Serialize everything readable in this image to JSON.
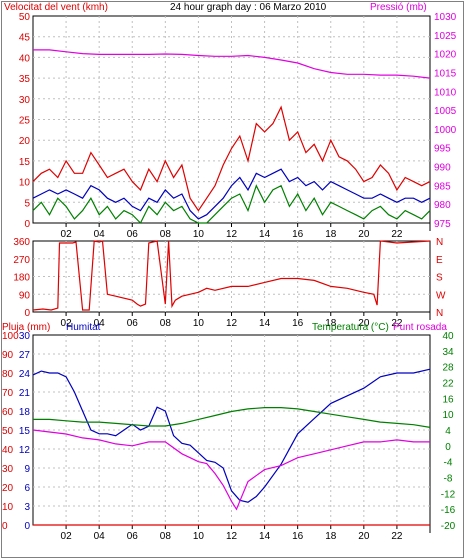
{
  "header": {
    "left_title": "Velocitat del vent (kmh)",
    "center_title": "24 hour graph day : 06 Marzo 2010",
    "right_title": "Pressió (mb)"
  },
  "colors": {
    "red": "#e00000",
    "blue": "#0000c0",
    "green": "#008000",
    "magenta": "#e000e0",
    "grid": "#c0c0c0",
    "frame": "#000000"
  },
  "chart_data": [
    {
      "id": "wind_pressure",
      "type": "line",
      "title": "24 hour graph day : 06 Marzo 2010",
      "x_ticks": [
        "02",
        "04",
        "06",
        "08",
        "10",
        "12",
        "14",
        "16",
        "18",
        "20",
        "22"
      ],
      "left_axis": {
        "label": "Velocitat del vent (kmh)",
        "ticks": [
          0,
          5,
          10,
          15,
          20,
          25,
          30,
          35,
          40,
          45,
          50
        ],
        "ylim": [
          0,
          50
        ]
      },
      "right_axis": {
        "label": "Pressió (mb)",
        "ticks": [
          975,
          980,
          985,
          990,
          995,
          1000,
          1005,
          1010,
          1015,
          1020,
          1025,
          1030
        ],
        "ylim": [
          975,
          1030
        ]
      },
      "series": [
        {
          "axis": "right",
          "color": "#e000e0",
          "x": [
            0,
            1,
            2,
            3,
            4,
            5,
            6,
            7,
            8,
            9,
            10,
            11,
            12,
            13,
            14,
            15,
            16,
            17,
            18,
            19,
            20,
            21,
            22,
            23,
            24
          ],
          "values": [
            1021,
            1021,
            1020.5,
            1020,
            1019.8,
            1019.8,
            1019.8,
            1019.8,
            1019.9,
            1019.8,
            1019.5,
            1019.3,
            1019.3,
            1019.5,
            1019,
            1018.3,
            1017.5,
            1016,
            1015,
            1014.5,
            1014.5,
            1014.3,
            1014.3,
            1014,
            1013.5
          ]
        },
        {
          "axis": "left",
          "color": "#e00000",
          "x": [
            0,
            0.5,
            1,
            1.5,
            2,
            2.5,
            3,
            3.5,
            4,
            4.5,
            5,
            5.5,
            6,
            6.5,
            7,
            7.5,
            8,
            8.5,
            9,
            9.5,
            10,
            10.5,
            11,
            11.5,
            12,
            12.5,
            13,
            13.5,
            14,
            14.5,
            15,
            15.5,
            16,
            16.5,
            17,
            17.5,
            18,
            18.5,
            19,
            19.5,
            20,
            20.5,
            21,
            21.5,
            22,
            22.5,
            23,
            23.5,
            24
          ],
          "values": [
            10,
            12,
            13,
            11,
            15,
            12,
            12,
            17,
            14,
            11,
            12,
            13,
            10,
            8,
            13,
            10,
            15,
            11,
            14,
            6,
            3,
            6,
            9,
            14,
            18,
            21,
            15,
            24,
            22,
            24,
            28,
            20,
            22,
            17,
            19,
            15,
            20,
            16,
            15,
            13,
            10,
            11,
            14,
            12,
            8,
            11,
            10,
            9,
            10
          ]
        },
        {
          "axis": "left",
          "color": "#0000c0",
          "x": [
            0,
            0.5,
            1,
            1.5,
            2,
            2.5,
            3,
            3.5,
            4,
            4.5,
            5,
            5.5,
            6,
            6.5,
            7,
            7.5,
            8,
            8.5,
            9,
            9.5,
            10,
            10.5,
            11,
            11.5,
            12,
            12.5,
            13,
            13.5,
            14,
            14.5,
            15,
            15.5,
            16,
            16.5,
            17,
            17.5,
            18,
            18.5,
            19,
            19.5,
            20,
            20.5,
            21,
            21.5,
            22,
            22.5,
            23,
            23.5,
            24
          ],
          "values": [
            6,
            7,
            8,
            7,
            8,
            7,
            6,
            9,
            8,
            6,
            5,
            6,
            4,
            3,
            6,
            5,
            8,
            6,
            7,
            3,
            1,
            2,
            4,
            6,
            9,
            11,
            8,
            12,
            11,
            12,
            13,
            10,
            11,
            9,
            10,
            8,
            10,
            9,
            8,
            7,
            6,
            6,
            7,
            6,
            5,
            6,
            6,
            5,
            6
          ]
        },
        {
          "axis": "left",
          "color": "#008000",
          "x": [
            0,
            0.5,
            1,
            1.5,
            2,
            2.5,
            3,
            3.5,
            4,
            4.5,
            5,
            5.5,
            6,
            6.5,
            7,
            7.5,
            8,
            8.5,
            9,
            9.5,
            10,
            10.5,
            11,
            11.5,
            12,
            12.5,
            13,
            13.5,
            14,
            14.5,
            15,
            15.5,
            16,
            16.5,
            17,
            17.5,
            18,
            18.5,
            19,
            19.5,
            20,
            20.5,
            21,
            21.5,
            22,
            22.5,
            23,
            23.5,
            24
          ],
          "values": [
            3,
            5,
            2,
            6,
            4,
            1,
            3,
            6,
            2,
            4,
            1,
            3,
            2,
            0,
            4,
            2,
            5,
            3,
            4,
            1,
            0,
            0,
            2,
            4,
            6,
            7,
            3,
            9,
            5,
            8,
            9,
            4,
            7,
            3,
            6,
            2,
            5,
            4,
            3,
            2,
            1,
            3,
            4,
            2,
            1,
            3,
            2,
            1,
            3
          ]
        }
      ]
    },
    {
      "id": "wind_direction",
      "type": "line",
      "left_axis": {
        "ticks": [
          0,
          90,
          180,
          270,
          360
        ],
        "ylim": [
          0,
          360
        ]
      },
      "right_axis": {
        "ticks": [
          "N",
          "W",
          "S",
          "E",
          "N"
        ]
      },
      "series": [
        {
          "color": "#e00000",
          "x": [
            0,
            0.6,
            1.1,
            1.5,
            1.6,
            2,
            2.4,
            2.6,
            3,
            3.4,
            3.7,
            4,
            4.2,
            4.5,
            5,
            6,
            6.3,
            6.5,
            6.8,
            7,
            7.5,
            8,
            8.2,
            8.4,
            8.6,
            8.8,
            9,
            10,
            10.5,
            11,
            12,
            13,
            14,
            15,
            16,
            17,
            18,
            19,
            20,
            20.6,
            20.8,
            21,
            22,
            23,
            24
          ],
          "values": [
            10,
            15,
            10,
            20,
            350,
            350,
            350,
            355,
            10,
            10,
            360,
            355,
            360,
            90,
            80,
            60,
            40,
            30,
            40,
            350,
            360,
            40,
            360,
            30,
            60,
            70,
            80,
            100,
            120,
            110,
            130,
            130,
            150,
            170,
            170,
            160,
            130,
            120,
            100,
            90,
            35,
            360,
            350,
            355,
            360
          ]
        }
      ]
    },
    {
      "id": "humidity_temp",
      "type": "line",
      "left_labels": {
        "rain": "Pluja (mm)",
        "humidity": "Humitat"
      },
      "right_label": "Temperatura (°C)",
      "right_label2": "Punt rosada",
      "left_axis_rain": {
        "ticks": [
          0,
          3,
          6,
          9,
          12,
          15,
          18,
          21,
          24,
          27,
          30
        ],
        "ylim": [
          0,
          30
        ]
      },
      "left_axis_humidity": {
        "ticks": [
          0,
          10,
          20,
          30,
          40,
          50,
          60,
          70,
          80,
          90,
          100
        ],
        "ylim": [
          0,
          100
        ]
      },
      "right_axis": {
        "ticks": [
          -20,
          -16,
          -12,
          -8,
          -4,
          0,
          4,
          10,
          16,
          22,
          28,
          34,
          40
        ]
      },
      "series": [
        {
          "name": "Humitat",
          "color": "#0000c0",
          "x": [
            0,
            0.5,
            1,
            1.5,
            2,
            2.5,
            3,
            3.5,
            4,
            4.5,
            5,
            5.5,
            6,
            6.5,
            7,
            7.5,
            8,
            8.5,
            9,
            9.5,
            10,
            10.5,
            11,
            11.5,
            12,
            12.5,
            13,
            13.5,
            14,
            15,
            16,
            17,
            18,
            19,
            20,
            21,
            22,
            23,
            24
          ],
          "values": [
            79,
            81,
            80,
            80,
            78,
            70,
            60,
            50,
            48,
            48,
            47,
            50,
            53,
            50,
            52,
            62,
            60,
            47,
            43,
            42,
            38,
            34,
            33,
            30,
            18,
            13,
            12,
            15,
            20,
            32,
            48,
            56,
            64,
            68,
            72,
            78,
            80,
            80,
            82
          ]
        },
        {
          "name": "Temperatura (°C)",
          "color": "#008000",
          "x": [
            0,
            1,
            2,
            3,
            4,
            5,
            6,
            7,
            8,
            9,
            10,
            11,
            12,
            13,
            14,
            15,
            16,
            17,
            18,
            19,
            20,
            21,
            22,
            23,
            24
          ],
          "values": [
            8,
            8,
            7.5,
            7,
            7,
            6.5,
            6,
            5.5,
            5.5,
            6.5,
            8,
            9.5,
            11,
            12,
            12.5,
            12.5,
            12,
            11,
            10,
            9,
            8,
            7,
            6.5,
            6,
            5
          ]
        },
        {
          "name": "Punt rosada",
          "color": "#e000e0",
          "x": [
            0,
            1,
            2,
            3,
            4,
            5,
            6,
            7,
            8,
            9,
            9.5,
            10,
            10.5,
            11,
            11.5,
            12,
            12.3,
            12.6,
            13,
            14,
            15,
            16,
            17,
            18,
            19,
            20,
            21,
            22,
            23,
            24
          ],
          "values": [
            4,
            3.5,
            3,
            2,
            1.5,
            0.5,
            0,
            1,
            1,
            -2,
            -3,
            -4,
            -4.5,
            -7,
            -10,
            -14,
            -16,
            -13,
            -9,
            -6,
            -5,
            -3,
            -2,
            -1,
            0,
            1,
            1,
            1.5,
            1,
            1
          ]
        },
        {
          "name": "Pluja (mm)",
          "color": "#e00000",
          "x": [
            0,
            24
          ],
          "values": [
            0,
            0
          ]
        }
      ]
    }
  ]
}
